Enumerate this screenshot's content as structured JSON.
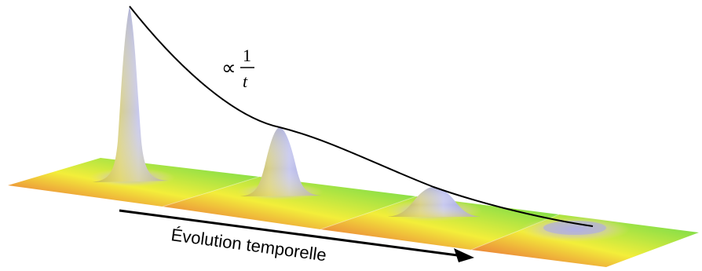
{
  "annotation": {
    "symbol": "∝",
    "numerator": "1",
    "denominator": "t"
  },
  "caption": "Évolution temporelle",
  "colors": {
    "curve": "#000000",
    "arrow": "#000000",
    "plane_red": "#e8503a",
    "plane_yellow": "#f3ee3a",
    "plane_green": "#56d84e",
    "peak_blue": "#9aa2ee",
    "peak_olive": "#b9b25a"
  }
}
